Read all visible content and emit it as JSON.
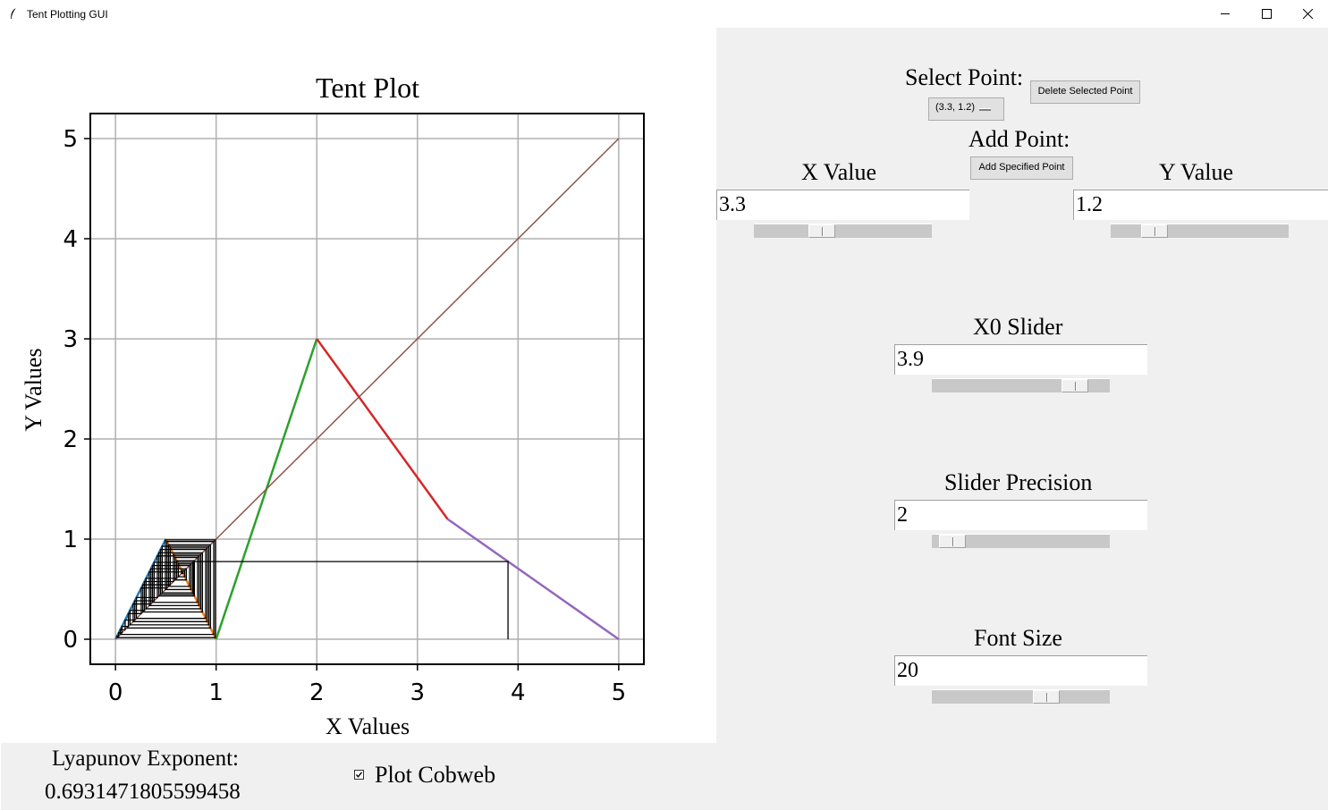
{
  "window": {
    "title": "Tent Plotting GUI",
    "minimize_icon": "minimize-icon",
    "maximize_icon": "maximize-icon",
    "close_icon": "close-icon"
  },
  "chart_data": {
    "type": "line",
    "title": "Tent Plot",
    "xlabel": "X Values",
    "ylabel": "Y Values",
    "xlim": [
      -0.25,
      5.25
    ],
    "ylim": [
      -0.25,
      5.25
    ],
    "xticks": [
      0,
      1,
      2,
      3,
      4,
      5
    ],
    "yticks": [
      0,
      1,
      2,
      3,
      4,
      5
    ],
    "grid": true,
    "series": [
      {
        "color": "#1f77b4",
        "x": [
          0,
          0.5
        ],
        "y": [
          0,
          1
        ]
      },
      {
        "color": "#ff7f0e",
        "x": [
          0.5,
          1
        ],
        "y": [
          1,
          0
        ]
      },
      {
        "color": "#2ca02c",
        "x": [
          1,
          2
        ],
        "y": [
          0,
          3
        ]
      },
      {
        "color": "#d62728",
        "x": [
          2,
          3.3
        ],
        "y": [
          3,
          1.2
        ]
      },
      {
        "color": "#9467bd",
        "x": [
          3.3,
          5
        ],
        "y": [
          1.2,
          0
        ]
      },
      {
        "color": "#8c564b",
        "x": [
          0,
          5
        ],
        "y": [
          0,
          5
        ]
      }
    ],
    "cobweb": {
      "color": "#000000",
      "x0": 3.9,
      "orbit": [
        3.9,
        0.776,
        0.448,
        0.896,
        0.208,
        0.416,
        0.832,
        0.336,
        0.672,
        0.656,
        0.688,
        0.624,
        0.752,
        0.496,
        0.992,
        0.016,
        0.032,
        0.064,
        0.128,
        0.256,
        0.512,
        0.976,
        0.048,
        0.096,
        0.192,
        0.384,
        0.768,
        0.464,
        0.928,
        0.144,
        0.288,
        0.576,
        0.848,
        0.304,
        0.608,
        0.784,
        0.432,
        0.864,
        0.272,
        0.544,
        0.912,
        0.176,
        0.352,
        0.704,
        0.592,
        0.816,
        0.368,
        0.736,
        0.528,
        0.944,
        0.112
      ]
    }
  },
  "bottom": {
    "lyapunov_label": "Lyapunov Exponent:",
    "lyapunov_value": "0.6931471805599458",
    "cobweb_label": "Plot Cobweb",
    "cobweb_checked": true
  },
  "panel": {
    "select_point_label": "Select Point:",
    "selected_point": "(3.3, 1.2)",
    "delete_button": "Delete Selected Point",
    "add_point_label": "Add Point:",
    "add_button": "Add Specified Point",
    "x_value_label": "X Value",
    "x_value": "3.3",
    "x_slider_fraction": 0.36,
    "y_value_label": "Y Value",
    "y_value": "1.2",
    "y_slider_fraction": 0.2,
    "x0_label": "X0 Slider",
    "x0_value": "3.9",
    "x0_slider_fraction": 0.86,
    "precision_label": "Slider Precision",
    "precision_value": "2",
    "precision_slider_fraction": 0.05,
    "font_label": "Font Size",
    "font_value": "20",
    "font_slider_fraction": 0.67
  }
}
